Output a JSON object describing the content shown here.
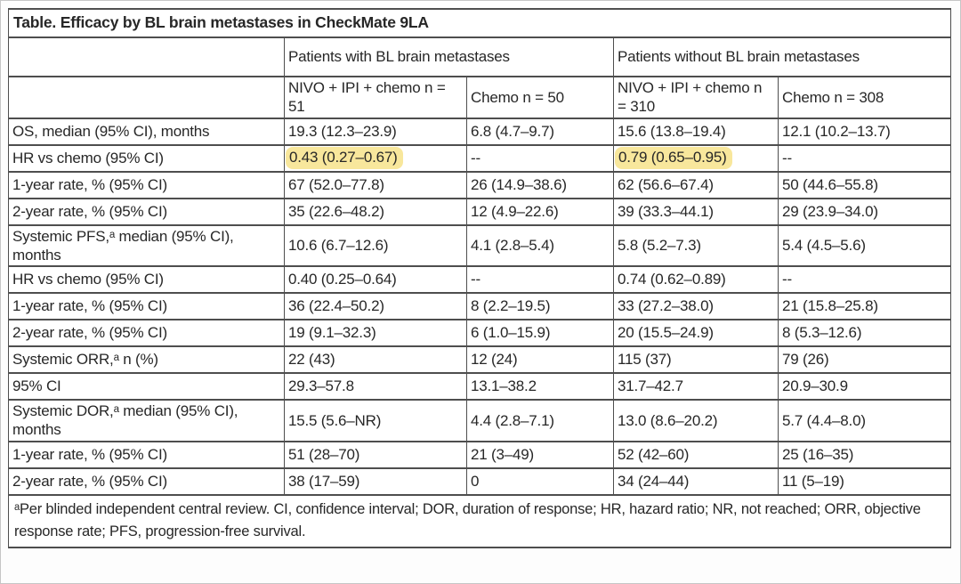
{
  "page": {
    "title": "Table. Efficacy by BL brain metastases in CheckMate 9LA"
  },
  "table": {
    "highlight_color": "#f8e79c",
    "group_headers": [
      {
        "label": "Patients with BL brain metastases"
      },
      {
        "label": "Patients without BL brain metastases"
      }
    ],
    "column_headers": [
      "NIVO + IPI + chemo n = 51",
      "Chemo n = 50",
      "NIVO + IPI + chemo n = 310",
      "Chemo n = 308"
    ],
    "rows": [
      {
        "label": "OS, median (95% CI), months",
        "values": [
          "19.3 (12.3–23.9)",
          "6.8 (4.7–9.7)",
          "15.6 (13.8–19.4)",
          "12.1 (10.2–13.7)"
        ],
        "highlight": []
      },
      {
        "label": "HR vs chemo (95% CI)",
        "values": [
          "0.43 (0.27–0.67)",
          "--",
          "0.79 (0.65–0.95)",
          "--"
        ],
        "highlight": [
          0,
          2
        ]
      },
      {
        "label": "1-year rate, % (95% CI)",
        "values": [
          "67 (52.0–77.8)",
          "26 (14.9–38.6)",
          "62 (56.6–67.4)",
          "50 (44.6–55.8)"
        ],
        "highlight": []
      },
      {
        "label": "2-year rate, % (95% CI)",
        "values": [
          "35 (22.6–48.2)",
          "12 (4.9–22.6)",
          "39 (33.3–44.1)",
          "29 (23.9–34.0)"
        ],
        "highlight": []
      },
      {
        "label": "Systemic PFS,ᵃ median (95% CI), months",
        "values": [
          "10.6 (6.7–12.6)",
          "4.1 (2.8–5.4)",
          "5.8 (5.2–7.3)",
          "5.4 (4.5–5.6)"
        ],
        "highlight": []
      },
      {
        "label": "HR vs chemo (95% CI)",
        "values": [
          "0.40 (0.25–0.64)",
          "--",
          "0.74 (0.62–0.89)",
          "--"
        ],
        "highlight": []
      },
      {
        "label": "1-year rate, % (95% CI)",
        "values": [
          "36 (22.4–50.2)",
          "8 (2.2–19.5)",
          "33 (27.2–38.0)",
          "21 (15.8–25.8)"
        ],
        "highlight": []
      },
      {
        "label": "2-year rate, % (95% CI)",
        "values": [
          "19 (9.1–32.3)",
          "6 (1.0–15.9)",
          "20 (15.5–24.9)",
          "8 (5.3–12.6)"
        ],
        "highlight": []
      },
      {
        "label": "Systemic ORR,ᵃ n (%)",
        "values": [
          "22 (43)",
          "12 (24)",
          "115 (37)",
          "79 (26)"
        ],
        "highlight": []
      },
      {
        "label": "95% CI",
        "values": [
          "29.3–57.8",
          "13.1–38.2",
          "31.7–42.7",
          "20.9–30.9"
        ],
        "highlight": []
      },
      {
        "label": "Systemic DOR,ᵃ median (95% CI), months",
        "values": [
          "15.5 (5.6–NR)",
          "4.4 (2.8–7.1)",
          "13.0 (8.6–20.2)",
          "5.7 (4.4–8.0)"
        ],
        "highlight": []
      },
      {
        "label": "1-year rate, % (95% CI)",
        "values": [
          "51 (28–70)",
          "21 (3–49)",
          "52 (42–60)",
          "25 (16–35)"
        ],
        "highlight": []
      },
      {
        "label": "2-year rate, % (95% CI)",
        "values": [
          "38 (17–59)",
          "0",
          "34 (24–44)",
          "11 (5–19)"
        ],
        "highlight": []
      }
    ],
    "footnote": "ᵃPer blinded independent central review. CI, confidence interval; DOR, duration of response; HR, hazard ratio; NR, not reached; ORR, objective response rate; PFS, progression-free survival."
  }
}
